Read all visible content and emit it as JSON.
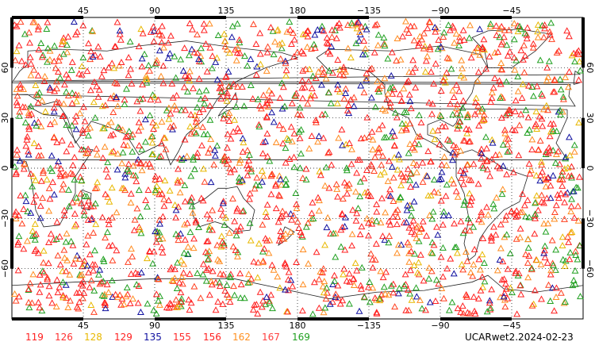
{
  "axes": {
    "top_lon_labels": [
      "45",
      "90",
      "135",
      "180",
      "−135",
      "−90",
      "−45"
    ],
    "bottom_lon_labels": [
      "45",
      "90",
      "135",
      "180",
      "−135",
      "−90",
      "−45"
    ],
    "left_lat_labels": [
      "60",
      "30",
      "0",
      "−30",
      "−60"
    ],
    "right_lat_labels": [
      "60",
      "30",
      "0",
      "−30",
      "−60"
    ],
    "lon_range": [
      0,
      360
    ],
    "lat_range": [
      -90,
      90
    ],
    "gridlines": "dotted"
  },
  "legend": [
    {
      "label": "119",
      "color": "#ff2020"
    },
    {
      "label": "126",
      "color": "#ff3030"
    },
    {
      "label": "128",
      "color": "#e8b800"
    },
    {
      "label": "129",
      "color": "#ff2020"
    },
    {
      "label": "135",
      "color": "#1010a0"
    },
    {
      "label": "155",
      "color": "#ff2828"
    },
    {
      "label": "156",
      "color": "#ff2020"
    },
    {
      "label": "162",
      "color": "#ff9020"
    },
    {
      "label": "167",
      "color": "#ff4040"
    },
    {
      "label": "169",
      "color": "#20a020"
    }
  ],
  "caption": "UCARwet2.2024-02-23",
  "marker_icon": "triangle-outline",
  "marker_colors": [
    "#ff2020",
    "#ff4020",
    "#ff8c20",
    "#20a020",
    "#1010a0",
    "#e8b800"
  ]
}
